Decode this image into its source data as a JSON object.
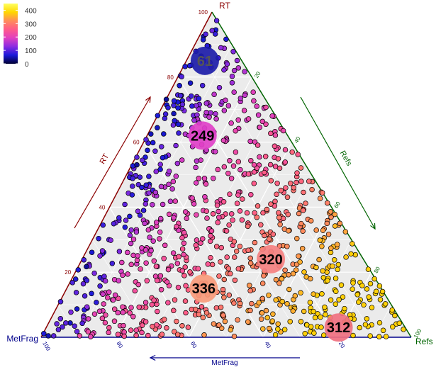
{
  "chart_data": {
    "type": "scatter",
    "subtype": "ternary",
    "axes": {
      "top": {
        "label": "RT",
        "color": "#8b0000",
        "ticks": [
          20,
          40,
          60,
          80,
          100
        ]
      },
      "right": {
        "label": "Refs",
        "color": "#006400",
        "ticks": [
          20,
          40,
          60,
          80,
          100
        ]
      },
      "left": {
        "label": "MetFrag",
        "color": "#00008b",
        "ticks": [
          20,
          40,
          60,
          80,
          100
        ]
      }
    },
    "arrow_labels": {
      "rt": "RT",
      "refs": "Refs",
      "metfrag": "MetFrag"
    },
    "colorbar": {
      "ticks": [
        0,
        100,
        200,
        300,
        400
      ],
      "range": [
        0,
        450
      ],
      "colors": [
        "#000033",
        "#1a1ad9",
        "#8a2be2",
        "#e040c0",
        "#ff5a8a",
        "#ff8c5a",
        "#ffd700",
        "#ffff60"
      ]
    },
    "clusters": [
      {
        "label": "61",
        "rt": 85,
        "refs": 5,
        "metfrag": 10,
        "value": 61,
        "color": "#1c1ca8"
      },
      {
        "label": "249",
        "rt": 62,
        "refs": 15,
        "metfrag": 23,
        "value": 249,
        "color": "#e040c8"
      },
      {
        "label": "320",
        "rt": 24,
        "refs": 51,
        "metfrag": 25,
        "value": 320,
        "color": "#f58080"
      },
      {
        "label": "336",
        "rt": 15,
        "refs": 37,
        "metfrag": 48,
        "value": 336,
        "color": "#f89a7a"
      },
      {
        "label": "312",
        "rt": 3,
        "refs": 79,
        "metfrag": 18,
        "value": 312,
        "color": "#f07080"
      }
    ],
    "point_count": 900,
    "grid": true
  }
}
